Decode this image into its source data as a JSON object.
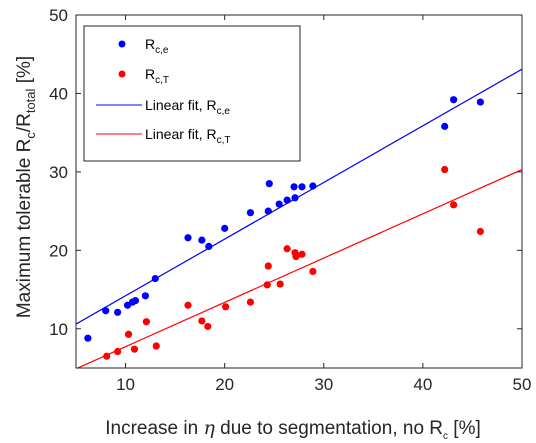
{
  "chart_data": {
    "type": "scatter",
    "xlabel": {
      "before": "Increase in ",
      "symbol": "η",
      "after": " due to segmentation, no R",
      "sub": "c",
      "end": " [%]"
    },
    "ylabel": {
      "before": "Maximum tolerable R",
      "sub1": "c",
      "mid": "/R",
      "sub2": "total",
      "end": "  [%]"
    },
    "xlim": [
      5,
      50
    ],
    "ylim": [
      5,
      50
    ],
    "xticks": [
      10,
      20,
      30,
      40,
      50
    ],
    "yticks": [
      10,
      20,
      30,
      40,
      50
    ],
    "grid": false,
    "legend_position": "top-left",
    "series": [
      {
        "name": "R_c,e",
        "legend": {
          "base": "R",
          "sub": "c,e"
        },
        "kind": "scatter",
        "color": "#0000ff",
        "points": [
          [
            6.2,
            8.8
          ],
          [
            8.0,
            12.3
          ],
          [
            9.2,
            12.1
          ],
          [
            10.2,
            13.0
          ],
          [
            10.7,
            13.4
          ],
          [
            11.0,
            13.6
          ],
          [
            12.0,
            14.2
          ],
          [
            13.0,
            16.4
          ],
          [
            16.3,
            21.6
          ],
          [
            17.7,
            21.3
          ],
          [
            18.4,
            20.5
          ],
          [
            20.0,
            22.8
          ],
          [
            22.6,
            24.8
          ],
          [
            24.4,
            25.0
          ],
          [
            24.5,
            28.5
          ],
          [
            25.5,
            25.9
          ],
          [
            26.3,
            26.4
          ],
          [
            27.1,
            26.7
          ],
          [
            27.0,
            28.1
          ],
          [
            27.8,
            28.1
          ],
          [
            28.9,
            28.2
          ],
          [
            42.2,
            35.8
          ],
          [
            43.1,
            39.2
          ],
          [
            45.8,
            38.9
          ]
        ]
      },
      {
        "name": "R_c,T",
        "legend": {
          "base": "R",
          "sub": "c,T"
        },
        "kind": "scatter",
        "color": "#ff0000",
        "points": [
          [
            8.1,
            6.5
          ],
          [
            9.2,
            7.1
          ],
          [
            10.3,
            9.3
          ],
          [
            10.9,
            7.4
          ],
          [
            12.1,
            10.9
          ],
          [
            13.1,
            7.8
          ],
          [
            16.3,
            13.0
          ],
          [
            17.7,
            11.0
          ],
          [
            18.3,
            10.3
          ],
          [
            20.1,
            12.8
          ],
          [
            22.6,
            13.4
          ],
          [
            24.3,
            15.6
          ],
          [
            24.4,
            18.0
          ],
          [
            25.6,
            15.7
          ],
          [
            26.3,
            20.2
          ],
          [
            27.1,
            19.7
          ],
          [
            27.2,
            19.2
          ],
          [
            27.8,
            19.5
          ],
          [
            28.9,
            17.3
          ],
          [
            42.2,
            30.3
          ],
          [
            43.1,
            25.8
          ],
          [
            45.8,
            22.4
          ]
        ]
      },
      {
        "name": "Linear fit, R_c,e",
        "legend": {
          "base": "Linear fit, R",
          "sub": "c,e"
        },
        "kind": "line",
        "color": "#0000ff",
        "x": [
          5,
          50
        ],
        "y": [
          10.6,
          43.1
        ]
      },
      {
        "name": "Linear fit, R_c,T",
        "legend": {
          "base": "Linear fit, R",
          "sub": "c,T"
        },
        "kind": "line",
        "color": "#ff0000",
        "x": [
          5,
          50
        ],
        "y": [
          4.9,
          30.3
        ]
      }
    ]
  }
}
